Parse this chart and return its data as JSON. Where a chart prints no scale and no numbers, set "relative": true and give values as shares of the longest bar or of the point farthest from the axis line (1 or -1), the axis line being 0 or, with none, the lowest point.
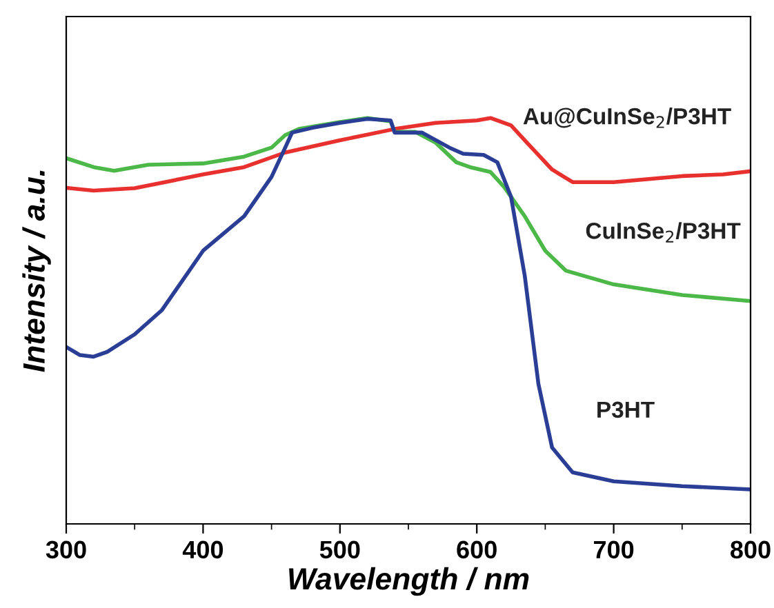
{
  "chart_data": {
    "type": "line",
    "xlabel": "Wavelength / nm",
    "ylabel": "Intensity / a.u.",
    "relative": true,
    "xlim": [
      300,
      800
    ],
    "xticks": [
      300,
      400,
      500,
      600,
      700,
      800
    ],
    "grid": false,
    "legend": false,
    "marker": "none",
    "line_style": "solid",
    "series": [
      {
        "name": "Au@CuInSe$_{2}$/P3HT",
        "color": "#e8312f",
        "x": [
          300,
          320,
          350,
          400,
          430,
          460,
          500,
          540,
          570,
          600,
          610,
          625,
          640,
          655,
          670,
          700,
          750,
          780,
          800
        ],
        "values": [
          0.828,
          0.821,
          0.827,
          0.861,
          0.879,
          0.915,
          0.945,
          0.973,
          0.988,
          0.994,
          1.0,
          0.982,
          0.927,
          0.873,
          0.842,
          0.842,
          0.857,
          0.861,
          0.869
        ]
      },
      {
        "name": "CuInSe$_{2}$/P3HT",
        "color": "#4cb848",
        "x": [
          300,
          320,
          335,
          360,
          400,
          430,
          450,
          460,
          470,
          500,
          520,
          537,
          540,
          555,
          570,
          585,
          595,
          610,
          620,
          635,
          650,
          665,
          700,
          750,
          800
        ],
        "values": [
          0.901,
          0.879,
          0.87,
          0.885,
          0.888,
          0.905,
          0.927,
          0.958,
          0.973,
          0.99,
          1.0,
          0.992,
          0.966,
          0.966,
          0.939,
          0.891,
          0.879,
          0.867,
          0.83,
          0.758,
          0.673,
          0.624,
          0.59,
          0.564,
          0.549
        ]
      },
      {
        "name": "P3HT",
        "color": "#2a3e96",
        "x": [
          300,
          310,
          320,
          330,
          350,
          370,
          400,
          430,
          450,
          460,
          465,
          480,
          500,
          520,
          537,
          540,
          560,
          580,
          590,
          605,
          615,
          625,
          635,
          645,
          655,
          670,
          700,
          750,
          800
        ],
        "values": [
          0.436,
          0.416,
          0.412,
          0.424,
          0.467,
          0.527,
          0.673,
          0.758,
          0.855,
          0.927,
          0.964,
          0.976,
          0.988,
          0.998,
          0.994,
          0.964,
          0.964,
          0.927,
          0.912,
          0.909,
          0.891,
          0.806,
          0.612,
          0.345,
          0.188,
          0.127,
          0.105,
          0.093,
          0.085
        ]
      }
    ]
  }
}
